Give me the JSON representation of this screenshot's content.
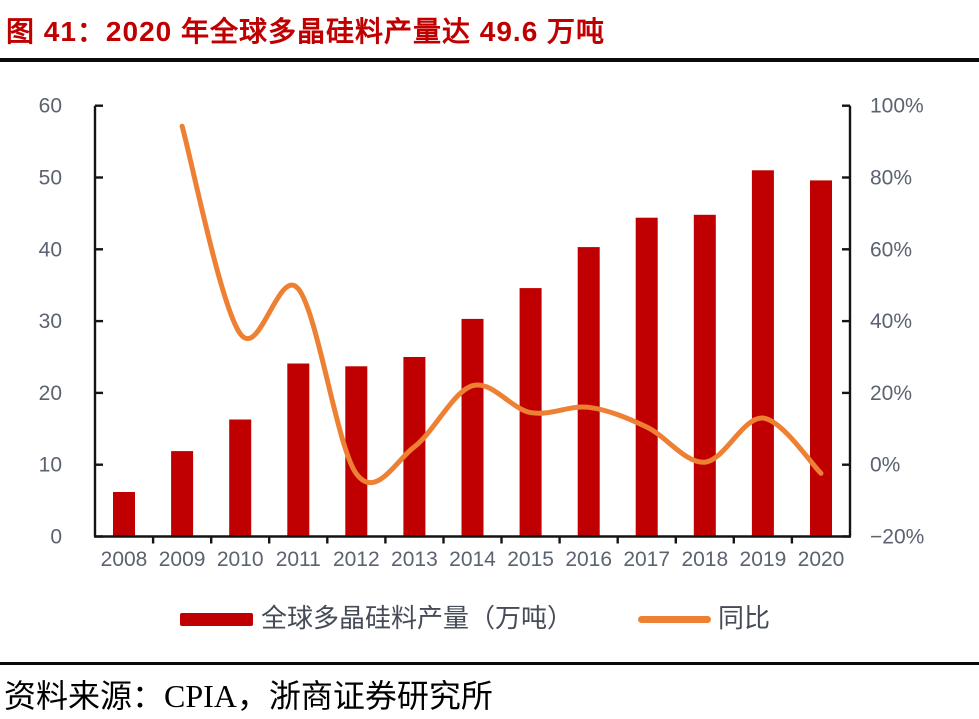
{
  "figure": {
    "title": "图 41：2020 年全球多晶硅料产量达 49.6 万吨",
    "source": "资料来源：CPIA，浙商证券研究所"
  },
  "colors": {
    "title_red": "#C00000",
    "bar_red": "#C00000",
    "line_orange": "#ED8033",
    "axis_label_gray": "#5B6270",
    "axis_line_black": "#141414",
    "divider_black": "#0A0A0A"
  },
  "chart_data": {
    "type": "combo",
    "subtype": "bar+line",
    "title": "2020 年全球多晶硅料产量达 49.6 万吨",
    "categories": [
      "2008",
      "2009",
      "2010",
      "2011",
      "2012",
      "2013",
      "2014",
      "2015",
      "2016",
      "2017",
      "2018",
      "2019",
      "2020"
    ],
    "series": [
      {
        "name": "全球多晶硅料产量（万吨）",
        "type": "bar",
        "axis": "left",
        "color": "#C00000",
        "values": [
          6.2,
          11.9,
          16.3,
          24.1,
          23.7,
          25.0,
          30.3,
          34.6,
          40.3,
          44.4,
          44.8,
          51.0,
          49.6
        ]
      },
      {
        "name": "同比",
        "type": "line",
        "axis": "right",
        "unit": "%",
        "color": "#ED8033",
        "smooth": true,
        "values": [
          null,
          94.3,
          36.5,
          49.0,
          -2.5,
          5.0,
          22.0,
          14.5,
          16.0,
          10.5,
          0.7,
          13.0,
          -2.4
        ]
      }
    ],
    "left_axis": {
      "min": 0,
      "max": 60,
      "tick_step": 10,
      "tick_labels": [
        "0",
        "10",
        "20",
        "30",
        "40",
        "50",
        "60"
      ]
    },
    "right_axis": {
      "min": -20,
      "max": 100,
      "tick_step": 20,
      "tick_labels": [
        "−20%",
        "0%",
        "20%",
        "40%",
        "60%",
        "80%",
        "100%"
      ]
    },
    "grid": false,
    "legend_position": "bottom"
  }
}
